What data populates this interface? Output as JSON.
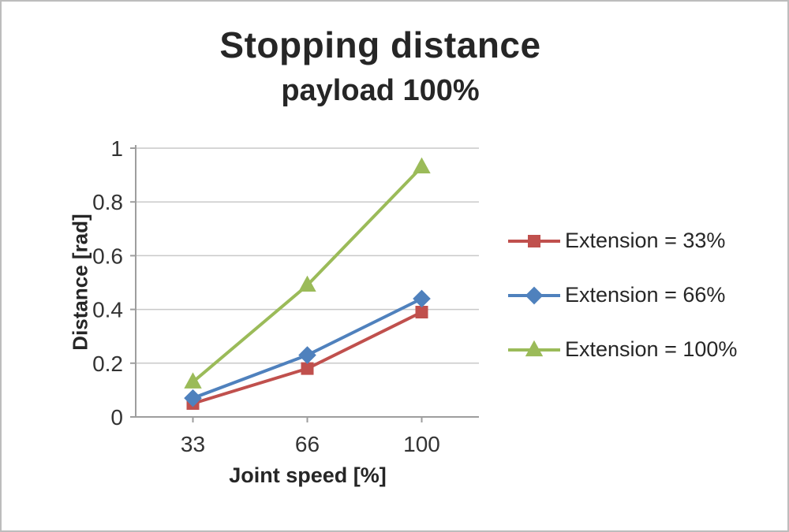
{
  "title": "Stopping distance",
  "subtitle": "payload 100%",
  "chart_data": {
    "type": "line",
    "title": "Stopping distance",
    "subtitle": "payload 100%",
    "xlabel": "Joint speed [%]",
    "ylabel": "Distance [rad]",
    "categories": [
      33,
      66,
      100
    ],
    "ylim": [
      0,
      1
    ],
    "yticks": [
      0,
      0.2,
      0.4,
      0.6,
      0.8,
      1
    ],
    "grid": "horizontal",
    "legend_position": "right",
    "series": [
      {
        "name": "Extension = 33%",
        "marker": "square",
        "color": "#C0504D",
        "values": [
          0.05,
          0.18,
          0.39
        ]
      },
      {
        "name": "Extension = 66%",
        "marker": "diamond",
        "color": "#4F81BD",
        "values": [
          0.07,
          0.23,
          0.44
        ]
      },
      {
        "name": "Extension = 100%",
        "marker": "triangle",
        "color": "#9BBB59",
        "values": [
          0.13,
          0.49,
          0.93
        ]
      }
    ]
  }
}
